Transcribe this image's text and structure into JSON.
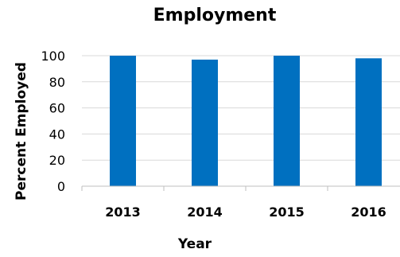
{
  "chart_data": {
    "type": "bar",
    "title": "Employment",
    "xlabel": "Year",
    "ylabel": "Percent Employed",
    "categories": [
      "2013",
      "2014",
      "2015",
      "2016"
    ],
    "values": [
      100,
      97,
      100,
      98
    ],
    "ylim": [
      0,
      100
    ],
    "yticks": [
      0,
      20,
      40,
      60,
      80,
      100
    ],
    "grid": true,
    "legend": "none",
    "bar_color": "#0070C0"
  }
}
